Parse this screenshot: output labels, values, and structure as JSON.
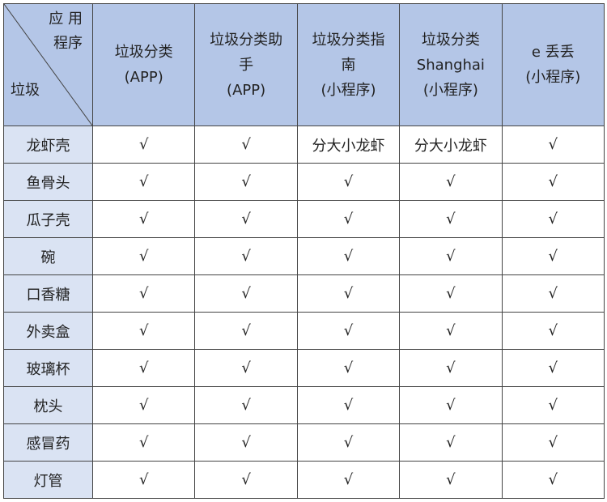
{
  "corner": {
    "top_line1": "应 用",
    "top_line2": "程序",
    "bottom": "垃圾"
  },
  "columns": [
    {
      "lines": [
        "垃圾分类",
        "(APP)"
      ]
    },
    {
      "lines": [
        "垃圾分类助",
        "手",
        "(APP)"
      ]
    },
    {
      "lines": [
        "垃圾分类指",
        "南",
        "(小程序)"
      ]
    },
    {
      "lines": [
        "垃圾分类",
        "Shanghai",
        "(小程序)"
      ]
    },
    {
      "lines": [
        "e 丢丢",
        "(小程序)"
      ]
    }
  ],
  "rows": [
    {
      "item": "龙虾壳",
      "cells": [
        "√",
        "√",
        "分大小龙虾",
        "分大小龙虾",
        "√"
      ]
    },
    {
      "item": "鱼骨头",
      "cells": [
        "√",
        "√",
        "√",
        "√",
        "√"
      ]
    },
    {
      "item": "瓜子壳",
      "cells": [
        "√",
        "√",
        "√",
        "√",
        "√"
      ]
    },
    {
      "item": "碗",
      "cells": [
        "√",
        "√",
        "√",
        "√",
        "√"
      ]
    },
    {
      "item": "口香糖",
      "cells": [
        "√",
        "√",
        "√",
        "√",
        "√"
      ]
    },
    {
      "item": "外卖盒",
      "cells": [
        "√",
        "√",
        "√",
        "√",
        "√"
      ]
    },
    {
      "item": "玻璃杯",
      "cells": [
        "√",
        "√",
        "√",
        "√",
        "√"
      ]
    },
    {
      "item": "枕头",
      "cells": [
        "√",
        "√",
        "√",
        "√",
        "√"
      ]
    },
    {
      "item": "感冒药",
      "cells": [
        "√",
        "√",
        "√",
        "√",
        "√"
      ]
    },
    {
      "item": "灯管",
      "cells": [
        "√",
        "√",
        "√",
        "√",
        "√"
      ]
    }
  ],
  "colors": {
    "header_bg": "#b4c6e7",
    "row_header_bg": "#dae3f3",
    "border": "#444444"
  }
}
